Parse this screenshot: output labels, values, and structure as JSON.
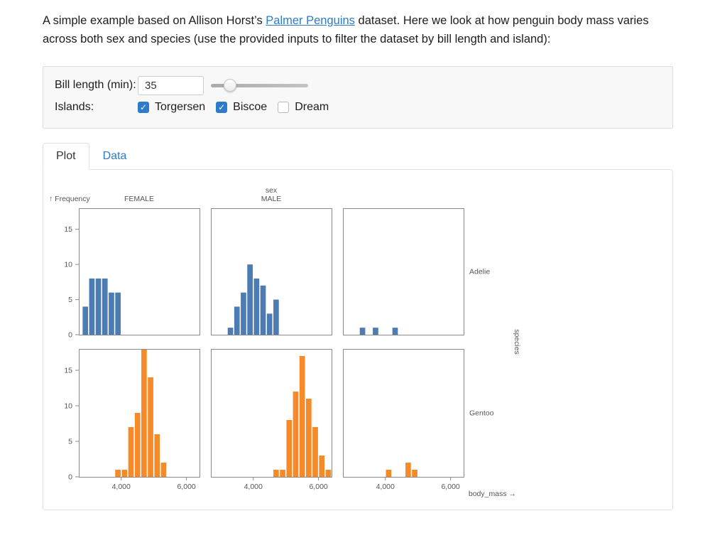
{
  "intro": {
    "text_before_link": "A simple example based on Allison Horst’s ",
    "link_text": "Palmer Penguins",
    "text_after_link": " dataset. Here we look at how penguin body mass varies across both sex and species (use the provided inputs to filter the dataset by bill length and island):"
  },
  "filters": {
    "bill_length_label": "Bill length (min):",
    "bill_length_value": "35",
    "slider_percent": 20,
    "islands_label": "Islands:",
    "islands": [
      {
        "label": "Torgersen",
        "checked": true
      },
      {
        "label": "Biscoe",
        "checked": true
      },
      {
        "label": "Dream",
        "checked": false
      }
    ]
  },
  "icons": {
    "check": "✓"
  },
  "tabs": [
    {
      "label": "Plot",
      "active": true
    },
    {
      "label": "Data",
      "active": false
    }
  ],
  "colors": {
    "accent": "#2e7bc9",
    "adelie_blue": "#4d7cb3",
    "gentoo_orange": "#f68a28",
    "frame_gray": "#8a8a8a",
    "label_gray": "#555555"
  },
  "chart_data": {
    "type": "bar",
    "subtype": "faceted-histogram",
    "x_title": "body_mass →",
    "y_title": "↑ Frequency",
    "col_title": "sex",
    "row_title": "species",
    "col_labels": [
      "FEMALE",
      "MALE",
      ""
    ],
    "row_labels": [
      "Adelie",
      "Gentoo"
    ],
    "x_domain": [
      2700,
      6400
    ],
    "x_ticks": [
      4000,
      6000
    ],
    "y_domain": [
      0,
      18
    ],
    "y_ticks": [
      0,
      5,
      10,
      15
    ],
    "bin_width": 200,
    "row_colors": {
      "Adelie": "#4d7cb3",
      "Gentoo": "#f68a28"
    },
    "facets": [
      {
        "row": "Adelie",
        "col": "FEMALE",
        "bins": [
          [
            2800,
            4
          ],
          [
            3000,
            8
          ],
          [
            3200,
            8
          ],
          [
            3400,
            8
          ],
          [
            3600,
            6
          ],
          [
            3800,
            6
          ]
        ]
      },
      {
        "row": "Adelie",
        "col": "MALE",
        "bins": [
          [
            3200,
            1
          ],
          [
            3400,
            4
          ],
          [
            3600,
            6
          ],
          [
            3800,
            10
          ],
          [
            4000,
            8
          ],
          [
            4200,
            7
          ],
          [
            4400,
            3
          ],
          [
            4600,
            5
          ]
        ]
      },
      {
        "row": "Adelie",
        "col": "",
        "bins": [
          [
            3200,
            1
          ],
          [
            3600,
            1
          ],
          [
            4200,
            1
          ]
        ]
      },
      {
        "row": "Gentoo",
        "col": "FEMALE",
        "bins": [
          [
            3800,
            1
          ],
          [
            4000,
            1
          ],
          [
            4200,
            7
          ],
          [
            4400,
            9
          ],
          [
            4600,
            18
          ],
          [
            4800,
            14
          ],
          [
            5000,
            6
          ],
          [
            5200,
            2
          ]
        ]
      },
      {
        "row": "Gentoo",
        "col": "MALE",
        "bins": [
          [
            4600,
            1
          ],
          [
            4800,
            1
          ],
          [
            5000,
            8
          ],
          [
            5200,
            12
          ],
          [
            5400,
            17
          ],
          [
            5600,
            11
          ],
          [
            5800,
            7
          ],
          [
            6000,
            3
          ],
          [
            6200,
            1
          ]
        ]
      },
      {
        "row": "Gentoo",
        "col": "",
        "bins": [
          [
            4000,
            1
          ],
          [
            4600,
            2
          ],
          [
            4800,
            1
          ]
        ]
      }
    ]
  }
}
